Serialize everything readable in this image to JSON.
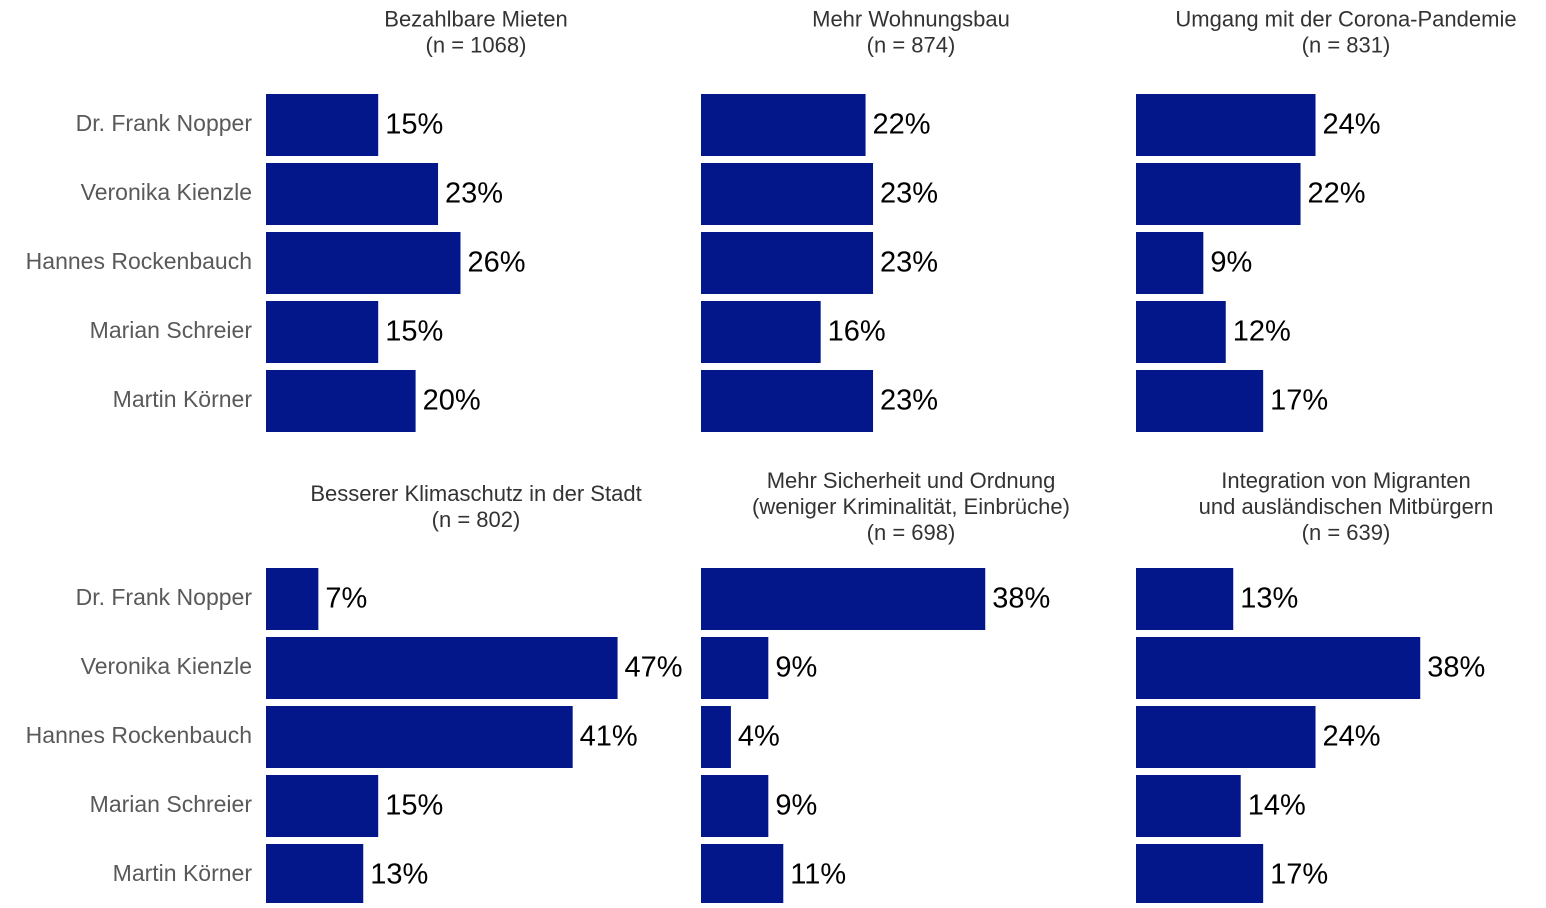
{
  "chart_data": [
    {
      "type": "barh",
      "title": [
        "Bezahlbare Mieten"
      ],
      "subtitle": "(n = 1068)",
      "color": "#03168a",
      "categories": [
        "Dr. Frank Nopper",
        "Veronika Kienzle",
        "Hannes Rockenbauch",
        "Marian Schreier",
        "Martin Körner"
      ],
      "values": [
        15,
        23,
        26,
        15,
        20
      ],
      "value_labels": [
        "15%",
        "23%",
        "26%",
        "15%",
        "20%"
      ]
    },
    {
      "type": "barh",
      "title": [
        "Mehr Wohnungsbau"
      ],
      "subtitle": "(n = 874)",
      "color": "#03168a",
      "values": [
        22,
        23,
        23,
        16,
        23
      ],
      "value_labels": [
        "22%",
        "23%",
        "23%",
        "16%",
        "23%"
      ]
    },
    {
      "type": "barh",
      "title": [
        "Umgang mit der Corona-Pandemie"
      ],
      "subtitle": "(n = 831)",
      "color": "#03168a",
      "values": [
        24,
        22,
        9,
        12,
        17
      ],
      "value_labels": [
        "24%",
        "22%",
        "9%",
        "12%",
        "17%"
      ]
    },
    {
      "type": "barh",
      "title": [
        "Besserer Klimaschutz in der Stadt"
      ],
      "subtitle": "(n = 802)",
      "color": "#03168a",
      "categories": [
        "Dr. Frank Nopper",
        "Veronika Kienzle",
        "Hannes Rockenbauch",
        "Marian Schreier",
        "Martin Körner"
      ],
      "values": [
        7,
        47,
        41,
        15,
        13
      ],
      "value_labels": [
        "7%",
        "47%",
        "41%",
        "15%",
        "13%"
      ]
    },
    {
      "type": "barh",
      "title": [
        "Mehr Sicherheit und Ordnung",
        "(weniger Kriminalität, Einbrüche)"
      ],
      "subtitle": "(n = 698)",
      "color": "#03168a",
      "values": [
        38,
        9,
        4,
        9,
        11
      ],
      "value_labels": [
        "38%",
        "9%",
        "4%",
        "9%",
        "11%"
      ]
    },
    {
      "type": "barh",
      "title": [
        "Integration von Migranten",
        "und ausländischen Mitbürgern"
      ],
      "subtitle": "(n = 639)",
      "color": "#03168a",
      "values": [
        13,
        38,
        24,
        14,
        17
      ],
      "value_labels": [
        "13%",
        "38%",
        "24%",
        "14%",
        "17%"
      ]
    }
  ]
}
